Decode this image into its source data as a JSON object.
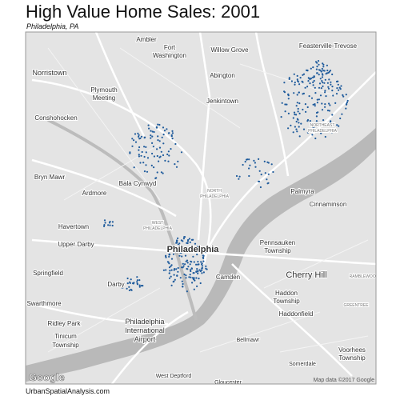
{
  "header": {
    "title": "High Value Home Sales:  2001",
    "subtitle": "Philadelphia, PA"
  },
  "map": {
    "labels": [
      "Ambler",
      "Feasterville-Trevose",
      "Fort",
      "Washington",
      "Willow Grove",
      "Norristown",
      "Abington",
      "Plymouth",
      "Meeting",
      "Jenkintown",
      "Conshohocken",
      "NORTHEAST",
      "PHILADELPHIA",
      "Bryn Mawr",
      "Bala Cynwyd",
      "NORTH",
      "PHILADELPHIA",
      "Palmyra",
      "Ardmore",
      "Cinnaminson",
      "Havertown",
      "WEST",
      "PHILADELPHIA",
      "Upper Darby",
      "Pennsauken",
      "Township",
      "Philadelphia",
      "Springfield",
      "Camden",
      "Cherry Hill",
      "RAMBLEWOOD",
      "Darby",
      "Haddon",
      "Township",
      "Swarthmore",
      "GREENTREE",
      "Haddonfield",
      "Ridley Park",
      "Philadelphia",
      "International",
      "Airport",
      "Tinicum",
      "Township",
      "Bellmawr",
      "Voorhees",
      "Township",
      "Somerdale",
      "West Deptford",
      "Gloucester"
    ],
    "logo": "Google",
    "attribution": "Map data ©2017 Google"
  },
  "footer": "UrbanSpatialAnalysis.com"
}
